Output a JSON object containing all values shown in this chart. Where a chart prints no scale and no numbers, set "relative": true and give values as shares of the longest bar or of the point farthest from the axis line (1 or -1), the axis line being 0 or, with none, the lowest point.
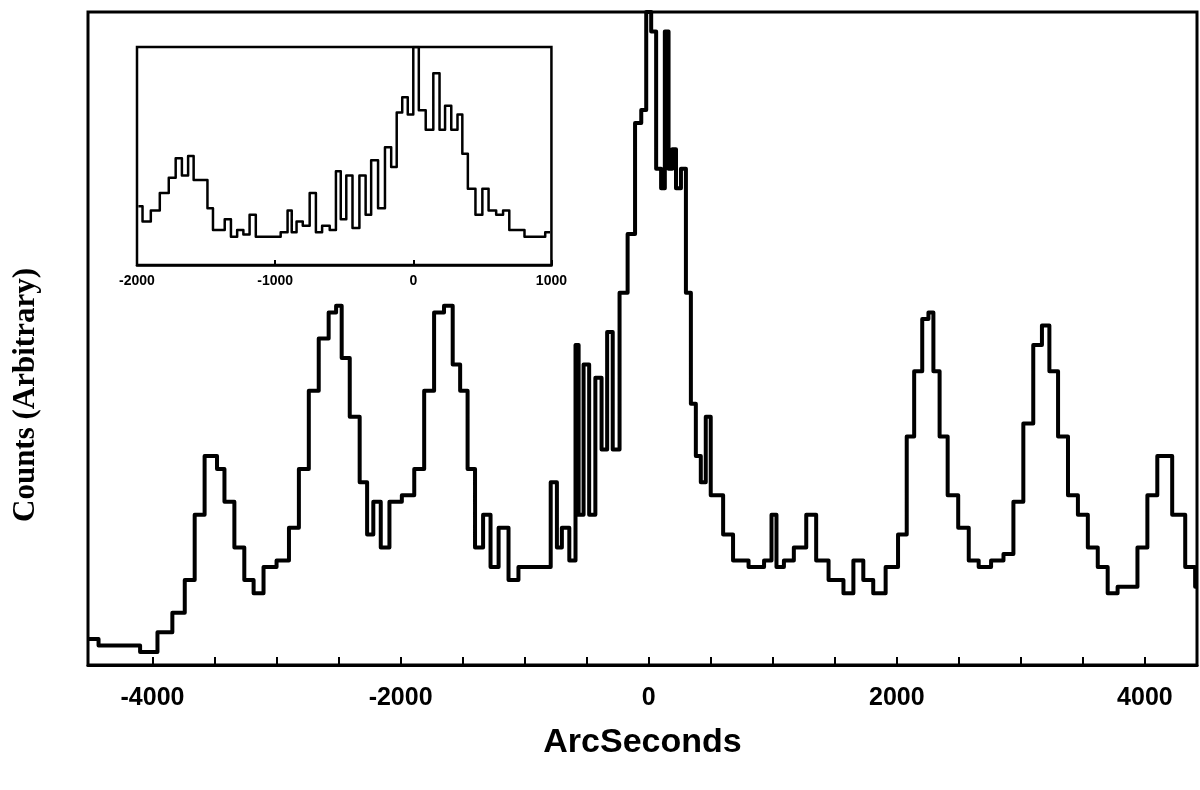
{
  "chart_data": [
    {
      "type": "step",
      "xlabel": "ArcSeconds",
      "ylabel": "Counts (Arbitrary)",
      "relative": true,
      "xlim": [
        -4520,
        4420
      ],
      "xticks": [
        -4000,
        {
          "value": -3500,
          "label": null
        },
        -2000,
        {
          "value": -3000,
          "label": null
        },
        {
          "value": -2500,
          "label": null
        },
        {
          "value": -1500,
          "label": null
        },
        {
          "value": -1000,
          "label": null
        },
        {
          "value": -500,
          "label": null
        },
        0,
        {
          "value": 500,
          "label": null
        },
        {
          "value": 1000,
          "label": null
        },
        {
          "value": 1500,
          "label": null
        },
        2000,
        {
          "value": 2500,
          "label": null
        },
        {
          "value": 3000,
          "label": null
        },
        {
          "value": 3500,
          "label": null
        },
        4000
      ],
      "x": [
        -4520,
        -4350,
        -4180,
        -4020,
        -3900,
        -3780,
        -3700,
        -3620,
        -3540,
        -3500,
        -3460,
        -3380,
        -3300,
        -3220,
        -3150,
        -3060,
        -2940,
        -2860,
        -2780,
        -2700,
        -2620,
        -2540,
        -2500,
        -2450,
        -2370,
        -2290,
        -2250,
        -2190,
        -2130,
        -2050,
        -1930,
        -1850,
        -1770,
        -1690,
        -1610,
        -1550,
        -1490,
        -1430,
        -1370,
        -1300,
        -1250,
        -1170,
        -1090,
        -1010,
        -890,
        -820,
        -760,
        -720,
        -680,
        -600,
        -580,
        -550,
        -500,
        -460,
        -400,
        -360,
        -310,
        -270,
        -200,
        -140,
        -80,
        -40,
        0,
        40,
        80,
        120,
        140,
        180,
        200,
        240,
        280,
        320,
        360,
        400,
        440,
        480,
        520,
        560,
        640,
        720,
        890,
        970,
        1010,
        1050,
        1130,
        1210,
        1330,
        1370,
        1530,
        1610,
        1690,
        1770,
        1850,
        1970,
        2050,
        2110,
        2170,
        2240,
        2270,
        2320,
        2370,
        2450,
        2540,
        2620,
        2700,
        2820,
        2900,
        2980,
        3060,
        3140,
        3200,
        3260,
        3340,
        3420,
        3500,
        3580,
        3660,
        3740,
        3820,
        3900,
        3980,
        4060,
        4140,
        4180,
        4260,
        4390,
        4420
      ],
      "series": [
        {
          "color": "#000000",
          "values": [
            0.04,
            0.03,
            0.03,
            0.02,
            0.05,
            0.08,
            0.13,
            0.23,
            0.32,
            0.32,
            0.3,
            0.25,
            0.18,
            0.13,
            0.11,
            0.15,
            0.16,
            0.21,
            0.3,
            0.42,
            0.5,
            0.54,
            0.55,
            0.47,
            0.38,
            0.28,
            0.2,
            0.25,
            0.18,
            0.25,
            0.26,
            0.3,
            0.42,
            0.54,
            0.55,
            0.46,
            0.42,
            0.3,
            0.18,
            0.23,
            0.15,
            0.21,
            0.13,
            0.15,
            0.15,
            0.15,
            0.28,
            0.18,
            0.21,
            0.16,
            0.49,
            0.23,
            0.46,
            0.23,
            0.44,
            0.33,
            0.51,
            0.33,
            0.57,
            0.66,
            0.83,
            0.85,
            1.0,
            0.97,
            0.76,
            0.73,
            0.97,
            0.76,
            0.79,
            0.73,
            0.76,
            0.57,
            0.4,
            0.32,
            0.28,
            0.38,
            0.26,
            0.26,
            0.2,
            0.16,
            0.15,
            0.16,
            0.23,
            0.15,
            0.16,
            0.18,
            0.23,
            0.16,
            0.13,
            0.11,
            0.16,
            0.13,
            0.11,
            0.15,
            0.2,
            0.35,
            0.45,
            0.53,
            0.54,
            0.45,
            0.35,
            0.26,
            0.21,
            0.16,
            0.15,
            0.16,
            0.17,
            0.25,
            0.37,
            0.49,
            0.52,
            0.45,
            0.35,
            0.26,
            0.23,
            0.18,
            0.15,
            0.11,
            0.12,
            0.12,
            0.18,
            0.26,
            0.32,
            0.32,
            0.23,
            0.15,
            0.12
          ]
        }
      ]
    },
    {
      "type": "step",
      "relative": true,
      "xlim": [
        -2000,
        1000
      ],
      "xticks": [
        -2000,
        -1000,
        0,
        1000
      ],
      "x": [
        -1990,
        -1930,
        -1870,
        -1800,
        -1740,
        -1700,
        -1650,
        -1610,
        -1570,
        -1510,
        -1470,
        -1430,
        -1390,
        -1340,
        -1300,
        -1250,
        -1210,
        -1160,
        -1120,
        -1060,
        -990,
        -930,
        -890,
        -870,
        -820,
        -780,
        -720,
        -690,
        -630,
        -580,
        -540,
        -510,
        -460,
        -420,
        -360,
        -330,
        -280,
        -230,
        -180,
        -140,
        -100,
        -60,
        -20,
        20,
        60,
        120,
        170,
        210,
        250,
        300,
        340,
        370,
        420,
        480,
        520,
        570,
        630,
        670,
        720,
        780,
        830,
        920,
        990
      ],
      "series": [
        {
          "color": "#000000",
          "values": [
            0.27,
            0.2,
            0.25,
            0.33,
            0.4,
            0.49,
            0.41,
            0.5,
            0.39,
            0.39,
            0.26,
            0.16,
            0.16,
            0.21,
            0.13,
            0.16,
            0.14,
            0.23,
            0.13,
            0.13,
            0.13,
            0.15,
            0.25,
            0.15,
            0.2,
            0.18,
            0.33,
            0.15,
            0.18,
            0.16,
            0.43,
            0.21,
            0.41,
            0.17,
            0.41,
            0.23,
            0.48,
            0.26,
            0.54,
            0.45,
            0.7,
            0.77,
            0.69,
            1.0,
            0.71,
            0.62,
            0.88,
            0.62,
            0.73,
            0.62,
            0.69,
            0.51,
            0.35,
            0.23,
            0.35,
            0.25,
            0.23,
            0.25,
            0.16,
            0.16,
            0.13,
            0.13,
            0.15
          ]
        }
      ]
    }
  ]
}
